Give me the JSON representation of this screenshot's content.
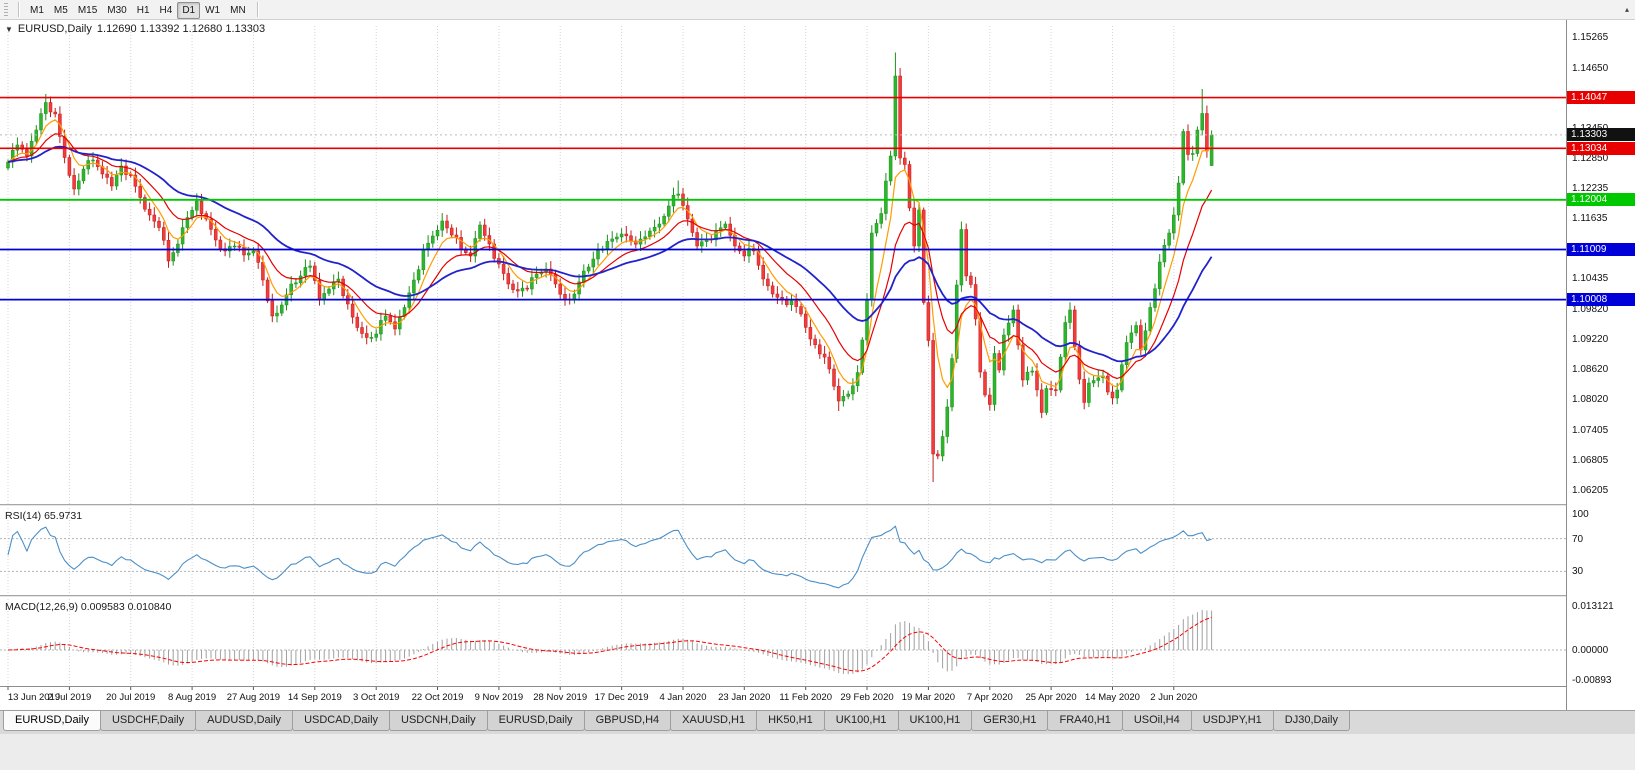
{
  "toolbar": {
    "timeframes": [
      "M1",
      "M5",
      "M15",
      "M30",
      "H1",
      "H4",
      "D1",
      "W1",
      "MN"
    ],
    "active_timeframe": "D1",
    "overflow_icon": "▴"
  },
  "chart_header": {
    "collapse_icon": "▼",
    "symbol": "EURUSD,Daily",
    "ohlc": "1.12690 1.13392 1.12680 1.13303"
  },
  "chart_data": {
    "type": "candlestick",
    "symbol": "EURUSD",
    "period": "Daily",
    "open": "1.12690",
    "high": "1.13392",
    "low": "1.12680",
    "close": "1.13303",
    "bars": 256,
    "x_label_stride": 13,
    "x_labels": [
      "13 Jun 2019",
      "2 Jul 2019",
      "20 Jul 2019",
      "8 Aug 2019",
      "27 Aug 2019",
      "14 Sep 2019",
      "3 Oct 2019",
      "22 Oct 2019",
      "9 Nov 2019",
      "28 Nov 2019",
      "17 Dec 2019",
      "4 Jan 2020",
      "23 Jan 2020",
      "11 Feb 2020",
      "29 Feb 2020",
      "19 Mar 2020",
      "7 Apr 2020",
      "25 Apr 2020",
      "14 May 2020",
      "2 Jun 2020"
    ],
    "y_axis": {
      "max": 1.1548,
      "min": 1.0592,
      "ticks": [
        {
          "p": 1.15265,
          "t": "1.15265"
        },
        {
          "p": 1.1465,
          "t": "1.14650"
        },
        {
          "p": 1.1345,
          "t": "1.13450"
        },
        {
          "p": 1.1285,
          "t": "1.12850"
        },
        {
          "p": 1.12235,
          "t": "1.12235"
        },
        {
          "p": 1.11635,
          "t": "1.11635"
        },
        {
          "p": 1.10435,
          "t": "1.10435"
        },
        {
          "p": 1.0982,
          "t": "1.09820"
        },
        {
          "p": 1.0922,
          "t": "1.09220"
        },
        {
          "p": 1.0862,
          "t": "1.08620"
        },
        {
          "p": 1.0802,
          "t": "1.08020"
        },
        {
          "p": 1.07405,
          "t": "1.07405"
        },
        {
          "p": 1.06805,
          "t": "1.06805"
        },
        {
          "p": 1.06205,
          "t": "1.06205"
        }
      ]
    },
    "noise_amp": 0.0005,
    "wick_amp": 0.0011,
    "close_anchors": [
      [
        0,
        1.1276
      ],
      [
        2,
        1.131
      ],
      [
        4,
        1.1288
      ],
      [
        6,
        1.134
      ],
      [
        8,
        1.1395
      ],
      [
        10,
        1.1372
      ],
      [
        12,
        1.1285
      ],
      [
        14,
        1.1222
      ],
      [
        16,
        1.1262
      ],
      [
        18,
        1.128
      ],
      [
        20,
        1.1252
      ],
      [
        22,
        1.1228
      ],
      [
        24,
        1.1268
      ],
      [
        26,
        1.125
      ],
      [
        28,
        1.1205
      ],
      [
        30,
        1.117
      ],
      [
        32,
        1.1145
      ],
      [
        34,
        1.1078
      ],
      [
        36,
        1.1112
      ],
      [
        38,
        1.1165
      ],
      [
        40,
        1.1198
      ],
      [
        42,
        1.1162
      ],
      [
        44,
        1.112
      ],
      [
        46,
        1.1098
      ],
      [
        48,
        1.1108
      ],
      [
        50,
        1.109
      ],
      [
        52,
        1.1098
      ],
      [
        54,
        1.104
      ],
      [
        56,
        1.0968
      ],
      [
        58,
        1.099
      ],
      [
        60,
        1.1032
      ],
      [
        62,
        1.1048
      ],
      [
        64,
        1.1068
      ],
      [
        66,
        1.1002
      ],
      [
        68,
        1.1022
      ],
      [
        70,
        1.1042
      ],
      [
        72,
        1.0992
      ],
      [
        74,
        1.0945
      ],
      [
        76,
        1.0925
      ],
      [
        78,
        1.0932
      ],
      [
        80,
        1.0968
      ],
      [
        82,
        1.0942
      ],
      [
        84,
        1.0985
      ],
      [
        86,
        1.104
      ],
      [
        88,
        1.11
      ],
      [
        90,
        1.1128
      ],
      [
        92,
        1.1158
      ],
      [
        94,
        1.113
      ],
      [
        96,
        1.1102
      ],
      [
        98,
        1.1088
      ],
      [
        100,
        1.115
      ],
      [
        102,
        1.1112
      ],
      [
        104,
        1.1072
      ],
      [
        106,
        1.1032
      ],
      [
        108,
        1.1018
      ],
      [
        110,
        1.1022
      ],
      [
        112,
        1.1052
      ],
      [
        114,
        1.1062
      ],
      [
        116,
        1.1032
      ],
      [
        118,
        1.1002
      ],
      [
        120,
        1.1012
      ],
      [
        122,
        1.1058
      ],
      [
        124,
        1.1082
      ],
      [
        126,
        1.1102
      ],
      [
        128,
        1.1122
      ],
      [
        130,
        1.1132
      ],
      [
        132,
        1.1118
      ],
      [
        134,
        1.1122
      ],
      [
        136,
        1.1138
      ],
      [
        138,
        1.1152
      ],
      [
        140,
        1.1188
      ],
      [
        142,
        1.1212
      ],
      [
        144,
        1.1162
      ],
      [
        146,
        1.1108
      ],
      [
        148,
        1.1122
      ],
      [
        150,
        1.1138
      ],
      [
        152,
        1.1152
      ],
      [
        154,
        1.1108
      ],
      [
        156,
        1.1088
      ],
      [
        158,
        1.1098
      ],
      [
        160,
        1.1042
      ],
      [
        162,
        1.1012
      ],
      [
        164,
        1.1002
      ],
      [
        166,
        1.0998
      ],
      [
        168,
        1.0972
      ],
      [
        170,
        1.0922
      ],
      [
        172,
        1.0892
      ],
      [
        174,
        1.0862
      ],
      [
        176,
        1.0798
      ],
      [
        178,
        1.0812
      ],
      [
        180,
        1.0855
      ],
      [
        182,
        1.1
      ],
      [
        183,
        1.1134
      ],
      [
        185,
        1.1173
      ],
      [
        186,
        1.1238
      ],
      [
        187,
        1.1288
      ],
      [
        188,
        1.1448
      ],
      [
        189,
        1.1284
      ],
      [
        190,
        1.1271
      ],
      [
        191,
        1.1184
      ],
      [
        192,
        1.1108
      ],
      [
        193,
        1.118
      ],
      [
        194,
        1.0995
      ],
      [
        195,
        1.0919
      ],
      [
        196,
        1.0692
      ],
      [
        197,
        1.0688
      ],
      [
        198,
        1.0727
      ],
      [
        199,
        1.0786
      ],
      [
        200,
        1.0883
      ],
      [
        201,
        1.103
      ],
      [
        202,
        1.1141
      ],
      [
        203,
        1.1048
      ],
      [
        204,
        1.1031
      ],
      [
        205,
        1.0962
      ],
      [
        206,
        1.0856
      ],
      [
        207,
        1.081
      ],
      [
        208,
        1.0791
      ],
      [
        209,
        1.0893
      ],
      [
        210,
        1.086
      ],
      [
        211,
        1.093
      ],
      [
        213,
        1.098
      ],
      [
        214,
        1.091
      ],
      [
        215,
        1.084
      ],
      [
        217,
        1.0858
      ],
      [
        219,
        1.0775
      ],
      [
        220,
        1.0823
      ],
      [
        222,
        1.082
      ],
      [
        224,
        1.0955
      ],
      [
        225,
        1.098
      ],
      [
        226,
        1.0907
      ],
      [
        228,
        1.0795
      ],
      [
        229,
        1.0834
      ],
      [
        230,
        1.0839
      ],
      [
        232,
        1.0848
      ],
      [
        233,
        1.0816
      ],
      [
        234,
        1.0804
      ],
      [
        235,
        1.082
      ],
      [
        237,
        1.0915
      ],
      [
        239,
        1.0949
      ],
      [
        240,
        1.09
      ],
      [
        242,
        1.0985
      ],
      [
        244,
        1.1076
      ],
      [
        246,
        1.1134
      ],
      [
        247,
        1.117
      ],
      [
        248,
        1.1234
      ],
      [
        249,
        1.1337
      ],
      [
        250,
        1.1291
      ],
      [
        251,
        1.1293
      ],
      [
        252,
        1.134
      ],
      [
        253,
        1.1373
      ],
      [
        254,
        1.1298
      ],
      [
        255,
        1.13303
      ]
    ],
    "overrides": {
      "8": {
        "h": 1.1412
      },
      "142": {
        "h": 1.1239
      },
      "176": {
        "l": 1.0778
      },
      "188": {
        "h": 1.1495
      },
      "196": {
        "l": 1.0636
      },
      "253": {
        "h": 1.1422
      },
      "255": {
        "o": 1.1269,
        "h": 1.13392,
        "l": 1.1268,
        "c": 1.13303
      }
    },
    "candle_colors": {
      "up": "#2db52d",
      "up_stroke": "#1e8f1e",
      "down": "#f23b3b",
      "down_stroke": "#c21c1c"
    },
    "moving_averages": [
      {
        "name": "ma-fast",
        "method": "ema",
        "period": 6,
        "color": "#ff9c00",
        "width": 1.2
      },
      {
        "name": "ma-mid",
        "method": "ema",
        "period": 14,
        "color": "#e60000",
        "width": 1.2
      },
      {
        "name": "ma-slow",
        "method": "ema",
        "period": 34,
        "color": "#2222cc",
        "width": 1.8
      }
    ],
    "hlines": [
      {
        "price": 1.14047,
        "color": "#e80000",
        "badge": "1.14047",
        "width": 1.6
      },
      {
        "price": 1.13034,
        "color": "#e80000",
        "badge": "1.13034",
        "width": 1.6
      },
      {
        "price": 1.12004,
        "color": "#00c800",
        "badge": "1.12004",
        "width": 1.8
      },
      {
        "price": 1.11009,
        "color": "#0000d8",
        "badge": "1.11009",
        "width": 1.8
      },
      {
        "price": 1.10008,
        "color": "#0000d8",
        "badge": "1.10008",
        "width": 1.8
      }
    ],
    "last_price": {
      "value": 1.13303,
      "badge": "1.13303",
      "badge_color": "#111111"
    },
    "rsi": {
      "title": "RSI(14) 65.9731",
      "period": 14,
      "current": 65.9731,
      "color": "#4a8fc8",
      "levels": [
        70,
        30
      ],
      "ticks": [
        {
          "v": 100,
          "t": "100"
        },
        {
          "v": 70,
          "t": "70"
        },
        {
          "v": 30,
          "t": "30"
        }
      ]
    },
    "macd": {
      "title": "MACD(12,26,9) 0.009583 0.010840",
      "fast": 12,
      "slow": 26,
      "signal": 9,
      "value": 0.009583,
      "signal_value": 0.01084,
      "hist_color": "#a0a0a0",
      "signal_color": "#ff0000",
      "scale": [
        {
          "v": 0.013121,
          "t": "0.013121"
        },
        {
          "v": 0,
          "t": "0.00000"
        },
        {
          "v": -0.00893,
          "t": "-0.00893"
        }
      ]
    }
  },
  "tabs": {
    "active_index": 0,
    "items": [
      "EURUSD,Daily",
      "USDCHF,Daily",
      "AUDUSD,Daily",
      "USDCAD,Daily",
      "USDCNH,Daily",
      "EURUSD,Daily",
      "GBPUSD,H4",
      "XAUUSD,H1",
      "HK50,H1",
      "UK100,H1",
      "UK100,H1",
      "GER30,H1",
      "FRA40,H1",
      "USOil,H4",
      "USDJPY,H1",
      "DJ30,Daily"
    ]
  }
}
